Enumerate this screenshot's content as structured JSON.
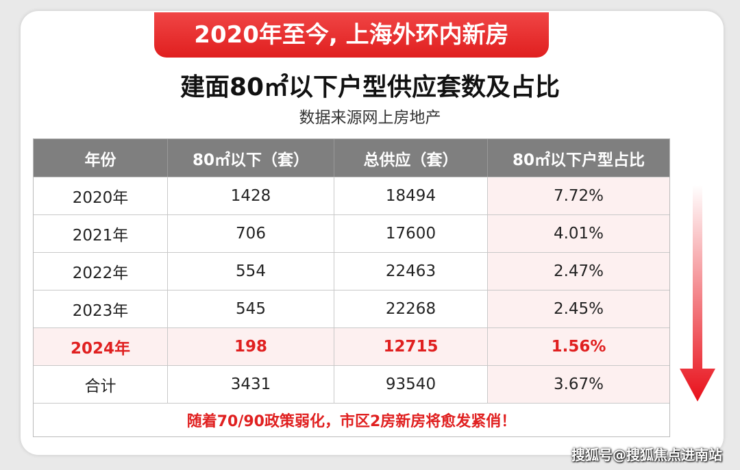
{
  "banner": "2020年至今, 上海外环内新房",
  "title": "建面80㎡以下户型供应套数及占比",
  "subtitle": "数据来源网上房地产",
  "table": {
    "header": [
      "年份",
      "80㎡以下（套）",
      "总供应（套）",
      "80㎡以下户型占比"
    ],
    "rows": [
      [
        "2020年",
        "1428",
        "18494",
        "7.72%"
      ],
      [
        "2021年",
        "706",
        "17600",
        "4.01%"
      ],
      [
        "2022年",
        "554",
        "22463",
        "2.47%"
      ],
      [
        "2023年",
        "545",
        "22268",
        "2.45%"
      ],
      [
        "2024年",
        "198",
        "12715",
        "1.56%"
      ],
      [
        "合计",
        "3431",
        "93540",
        "3.67%"
      ]
    ]
  },
  "footnote": "随着70/90政策弱化，市区2房新房将愈发紧俏！",
  "watermark": "搜狐号@搜狐焦点进南站"
}
